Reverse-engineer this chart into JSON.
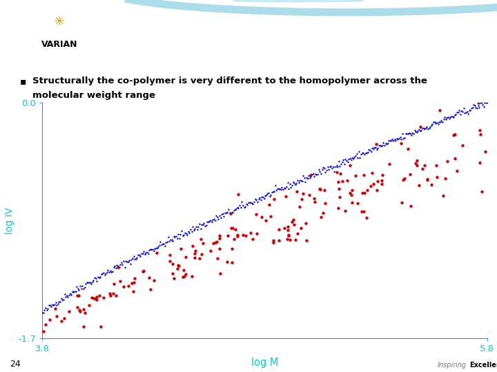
{
  "xlabel": "log M",
  "ylabel": "log IV",
  "xlim": [
    3.8,
    5.8
  ],
  "ylim": [
    -1.7,
    0.0
  ],
  "xtick_labels": [
    "3.8",
    "5.8"
  ],
  "xtick_positions": [
    3.8,
    5.8
  ],
  "ytick_labels": [
    "0.0",
    "-1.7"
  ],
  "ytick_positions": [
    0.0,
    -1.7
  ],
  "axis_color": "#00CCCC",
  "background_color": "#FFFFFF",
  "slide_bg_color": "#FFFFFF",
  "header_bg_color": "#1B8AB8",
  "blue_color": "#0000CC",
  "red_color": "#CC0000",
  "page_number": "24",
  "blue_seed": 42,
  "red_seed": 123,
  "n_blue": 400,
  "n_red": 200
}
